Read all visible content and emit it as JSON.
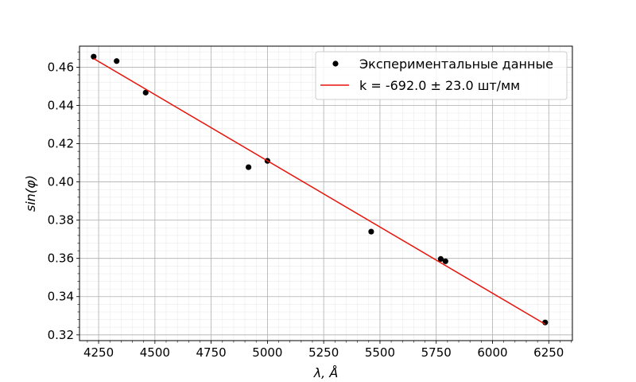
{
  "chart_data": {
    "type": "scatter",
    "xlabel": "λ, Å",
    "ylabel": "sin(φ)",
    "xlim": [
      4165,
      6355
    ],
    "ylim": [
      0.317,
      0.471
    ],
    "xticks": [
      4250,
      4500,
      4750,
      5000,
      5250,
      5500,
      5750,
      6000,
      6250
    ],
    "xtick_labels": [
      "4250",
      "4500",
      "4750",
      "5000",
      "5250",
      "5500",
      "5750",
      "6000",
      "6250"
    ],
    "yticks": [
      0.32,
      0.34,
      0.36,
      0.38,
      0.4,
      0.42,
      0.44,
      0.46
    ],
    "ytick_labels": [
      "0.32",
      "0.34",
      "0.36",
      "0.38",
      "0.40",
      "0.42",
      "0.44",
      "0.46"
    ],
    "grid": "major and minor",
    "legend_position": "top-right",
    "series": [
      {
        "name": "Экспериментальные данные",
        "kind": "scatter",
        "color": "#000000",
        "points": [
          {
            "x": 4228,
            "y": 0.4655
          },
          {
            "x": 4330,
            "y": 0.4632
          },
          {
            "x": 4459,
            "y": 0.4467
          },
          {
            "x": 4916,
            "y": 0.4077
          },
          {
            "x": 5000,
            "y": 0.411
          },
          {
            "x": 5461,
            "y": 0.374
          },
          {
            "x": 5770,
            "y": 0.3597
          },
          {
            "x": 5791,
            "y": 0.3585
          },
          {
            "x": 6234,
            "y": 0.3265
          }
        ]
      },
      {
        "name": "k = -692.0 ± 23.0 шт/мм",
        "kind": "line",
        "color": "#e8140b",
        "points": [
          {
            "x": 4228,
            "y": 0.4645
          },
          {
            "x": 6234,
            "y": 0.3256
          }
        ]
      }
    ]
  }
}
